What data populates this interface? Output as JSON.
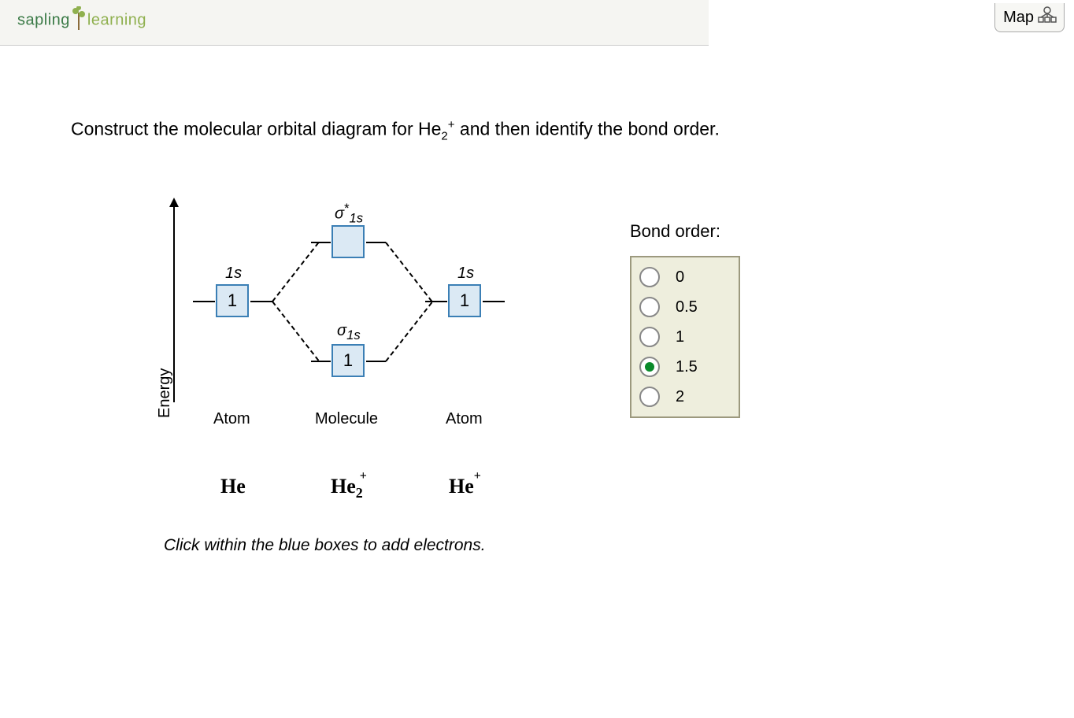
{
  "header": {
    "logo_sapling": "sapling",
    "logo_learning": "learning",
    "map_label": "Map"
  },
  "question": {
    "prefix": "Construct the molecular orbital diagram for He",
    "sub": "2",
    "sup": "+",
    "suffix": " and then identify the bond order."
  },
  "diagram": {
    "energy_label": "Energy",
    "left": {
      "orbital_label": "1s",
      "box_value": "1",
      "col_label": "Atom",
      "species": "He"
    },
    "right": {
      "orbital_label": "1s",
      "box_value": "1",
      "col_label": "Atom",
      "species_base": "He",
      "species_sup": "+"
    },
    "center": {
      "sigma_star_label_sigma": "σ",
      "sigma_star_label_star": "*",
      "sigma_star_label_sub": "1s",
      "sigma_star_value": "",
      "sigma_label_sigma": "σ",
      "sigma_label_sub": "1s",
      "sigma_value": "1",
      "col_label": "Molecule",
      "species_base": "He",
      "species_sub": "2",
      "species_sup": "+"
    },
    "instruction": "Click within the blue boxes to add electrons.",
    "colors": {
      "box_border": "#3b7fb5",
      "box_fill": "#dbe9f4",
      "panel_border": "#9c997e",
      "panel_fill": "#eeeedd",
      "radio_dot": "#0a8a2a"
    }
  },
  "bond_order": {
    "title": "Bond order:",
    "options": [
      {
        "value": "0",
        "selected": false
      },
      {
        "value": "0.5",
        "selected": false
      },
      {
        "value": "1",
        "selected": false
      },
      {
        "value": "1.5",
        "selected": true
      },
      {
        "value": "2",
        "selected": false
      }
    ]
  }
}
